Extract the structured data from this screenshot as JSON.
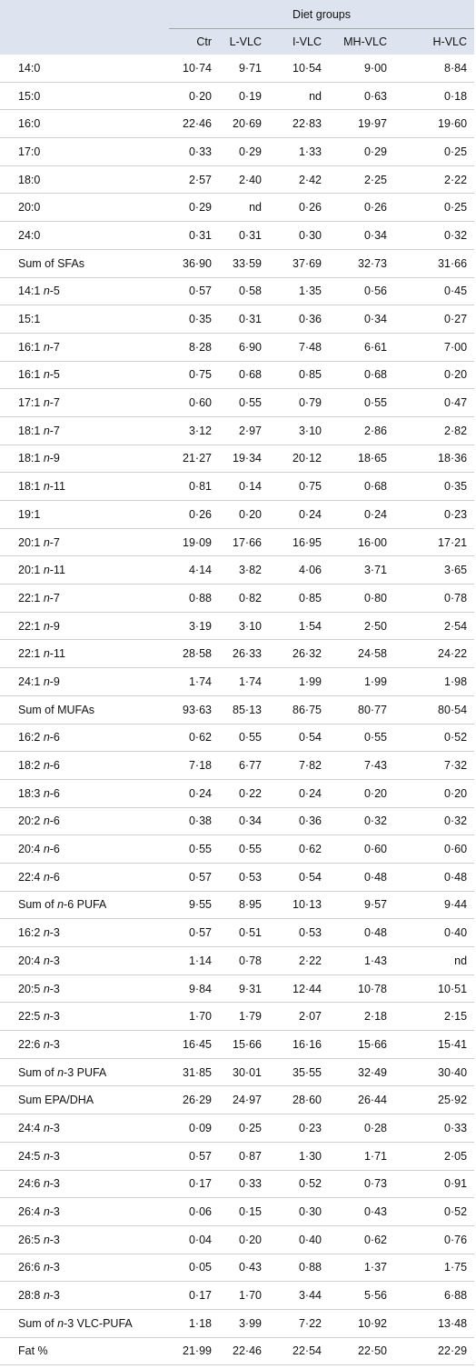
{
  "header": {
    "group_label": "Diet groups",
    "columns": [
      "Ctr",
      "L-VLC",
      "I-VLC",
      "MH-VLC",
      "H-VLC"
    ]
  },
  "table": {
    "rows": [
      [
        "14:0",
        "10·74",
        "9·71",
        "10·54",
        "9·00",
        "8·84"
      ],
      [
        "15:0",
        "0·20",
        "0·19",
        "nd",
        "0·63",
        "0·18"
      ],
      [
        "16:0",
        "22·46",
        "20·69",
        "22·83",
        "19·97",
        "19·60"
      ],
      [
        "17:0",
        "0·33",
        "0·29",
        "1·33",
        "0·29",
        "0·25"
      ],
      [
        "18:0",
        "2·57",
        "2·40",
        "2·42",
        "2·25",
        "2·22"
      ],
      [
        "20:0",
        "0·29",
        "nd",
        "0·26",
        "0·26",
        "0·25"
      ],
      [
        "24:0",
        "0·31",
        "0·31",
        "0·30",
        "0·34",
        "0·32"
      ],
      [
        "Sum of SFAs",
        "36·90",
        "33·59",
        "37·69",
        "32·73",
        "31·66"
      ],
      [
        "14:1 n-5",
        "0·57",
        "0·58",
        "1·35",
        "0·56",
        "0·45"
      ],
      [
        "15:1",
        "0·35",
        "0·31",
        "0·36",
        "0·34",
        "0·27"
      ],
      [
        "16:1 n-7",
        "8·28",
        "6·90",
        "7·48",
        "6·61",
        "7·00"
      ],
      [
        "16:1 n-5",
        "0·75",
        "0·68",
        "0·85",
        "0·68",
        "0·20"
      ],
      [
        "17:1 n-7",
        "0·60",
        "0·55",
        "0·79",
        "0·55",
        "0·47"
      ],
      [
        "18:1 n-7",
        "3·12",
        "2·97",
        "3·10",
        "2·86",
        "2·82"
      ],
      [
        "18:1 n-9",
        "21·27",
        "19·34",
        "20·12",
        "18·65",
        "18·36"
      ],
      [
        "18:1 n-11",
        "0·81",
        "0·14",
        "0·75",
        "0·68",
        "0·35"
      ],
      [
        "19:1",
        "0·26",
        "0·20",
        "0·24",
        "0·24",
        "0·23"
      ],
      [
        "20:1 n-7",
        "19·09",
        "17·66",
        "16·95",
        "16·00",
        "17·21"
      ],
      [
        "20:1 n-11",
        "4·14",
        "3·82",
        "4·06",
        "3·71",
        "3·65"
      ],
      [
        "22:1 n-7",
        "0·88",
        "0·82",
        "0·85",
        "0·80",
        "0·78"
      ],
      [
        "22:1 n-9",
        "3·19",
        "3·10",
        "1·54",
        "2·50",
        "2·54"
      ],
      [
        "22:1 n-11",
        "28·58",
        "26·33",
        "26·32",
        "24·58",
        "24·22"
      ],
      [
        "24:1 n-9",
        "1·74",
        "1·74",
        "1·99",
        "1·99",
        "1·98"
      ],
      [
        "Sum of MUFAs",
        "93·63",
        "85·13",
        "86·75",
        "80·77",
        "80·54"
      ],
      [
        "16:2 n-6",
        "0·62",
        "0·55",
        "0·54",
        "0·55",
        "0·52"
      ],
      [
        "18:2 n-6",
        "7·18",
        "6·77",
        "7·82",
        "7·43",
        "7·32"
      ],
      [
        "18:3 n-6",
        "0·24",
        "0·22",
        "0·24",
        "0·20",
        "0·20"
      ],
      [
        "20:2 n-6",
        "0·38",
        "0·34",
        "0·36",
        "0·32",
        "0·32"
      ],
      [
        "20:4 n-6",
        "0·55",
        "0·55",
        "0·62",
        "0·60",
        "0·60"
      ],
      [
        "22:4 n-6",
        "0·57",
        "0·53",
        "0·54",
        "0·48",
        "0·48"
      ],
      [
        "Sum of n-6 PUFA",
        "9·55",
        "8·95",
        "10·13",
        "9·57",
        "9·44"
      ],
      [
        "16:2 n-3",
        "0·57",
        "0·51",
        "0·53",
        "0·48",
        "0·40"
      ],
      [
        "20:4 n-3",
        "1·14",
        "0·78",
        "2·22",
        "1·43",
        "nd"
      ],
      [
        "20:5 n-3",
        "9·84",
        "9·31",
        "12·44",
        "10·78",
        "10·51"
      ],
      [
        "22:5 n-3",
        "1·70",
        "1·79",
        "2·07",
        "2·18",
        "2·15"
      ],
      [
        "22:6 n-3",
        "16·45",
        "15·66",
        "16·16",
        "15·66",
        "15·41"
      ],
      [
        "Sum of n-3 PUFA",
        "31·85",
        "30·01",
        "35·55",
        "32·49",
        "30·40"
      ],
      [
        "Sum EPA/DHA",
        "26·29",
        "24·97",
        "28·60",
        "26·44",
        "25·92"
      ],
      [
        "24:4 n-3",
        "0·09",
        "0·25",
        "0·23",
        "0·28",
        "0·33"
      ],
      [
        "24:5 n-3",
        "0·57",
        "0·87",
        "1·30",
        "1·71",
        "2·05"
      ],
      [
        "24:6 n-3",
        "0·17",
        "0·33",
        "0·52",
        "0·73",
        "0·91"
      ],
      [
        "26:4 n-3",
        "0·06",
        "0·15",
        "0·30",
        "0·43",
        "0·52"
      ],
      [
        "26:5 n-3",
        "0·04",
        "0·20",
        "0·40",
        "0·62",
        "0·76"
      ],
      [
        "26:6 n-3",
        "0·05",
        "0·43",
        "0·88",
        "1·37",
        "1·75"
      ],
      [
        "28:8 n-3",
        "0·17",
        "1·70",
        "3·44",
        "5·56",
        "6·88"
      ],
      [
        "Sum of n-3 VLC-PUFA",
        "1·18",
        "3·99",
        "7·22",
        "10·92",
        "13·48"
      ],
      [
        "Fat %",
        "21·99",
        "22·46",
        "22·54",
        "22·50",
        "22·29"
      ]
    ]
  }
}
